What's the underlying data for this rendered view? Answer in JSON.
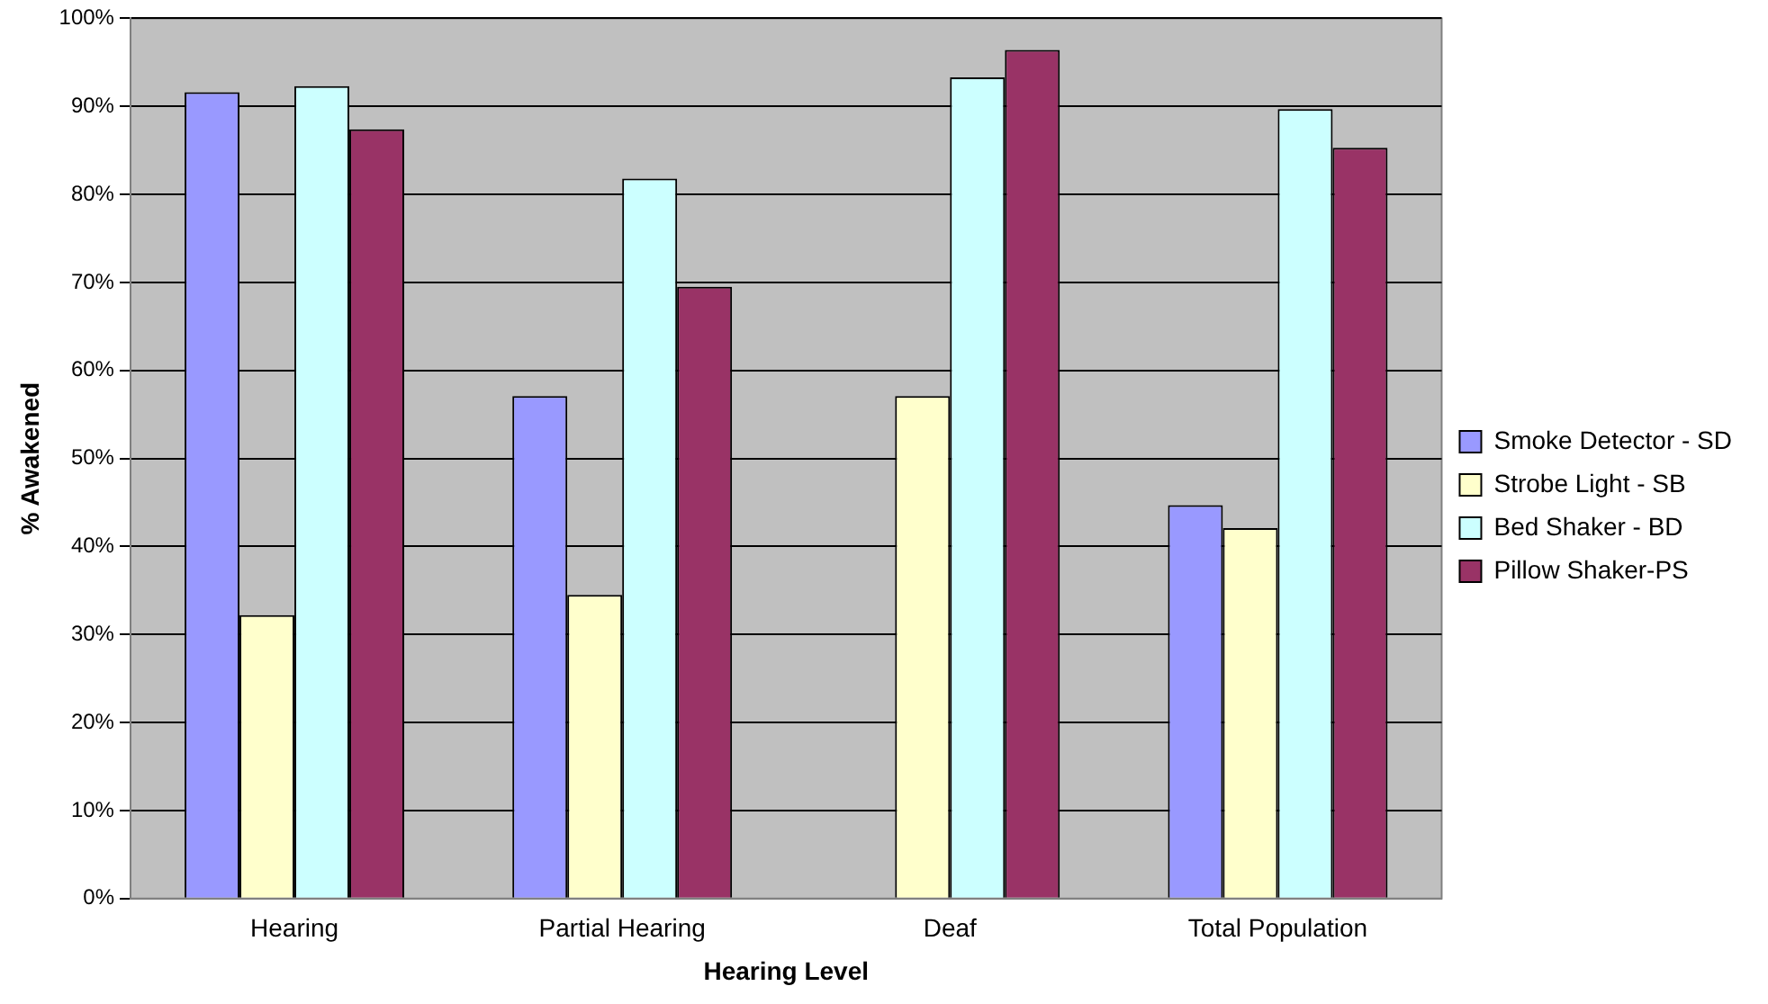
{
  "chart_data": {
    "type": "bar",
    "xlabel": "Hearing Level",
    "ylabel": "% Awakened",
    "categories": [
      "Hearing",
      "Partial Hearing",
      "Deaf",
      "Total Population"
    ],
    "series": [
      {
        "name": "Smoke Detector - SD",
        "color": "#9999ff",
        "values": [
          91.6,
          57.1,
          null,
          44.7
        ]
      },
      {
        "name": "Strobe Light - SB",
        "color": "#ffffcc",
        "values": [
          32.2,
          34.5,
          57.1,
          42.1
        ]
      },
      {
        "name": "Bed Shaker - BD",
        "color": "#ccffff",
        "values": [
          92.3,
          81.8,
          93.3,
          89.7
        ]
      },
      {
        "name": "Pillow Shaker-PS",
        "color": "#993366",
        "values": [
          87.4,
          69.5,
          96.4,
          85.3
        ]
      }
    ],
    "ylim": [
      0,
      100
    ],
    "yticks": [
      {
        "value": 0,
        "label": "0%"
      },
      {
        "value": 10,
        "label": "10%"
      },
      {
        "value": 20,
        "label": "20%"
      },
      {
        "value": 30,
        "label": "30%"
      },
      {
        "value": 40,
        "label": "40%"
      },
      {
        "value": 50,
        "label": "50%"
      },
      {
        "value": 60,
        "label": "60%"
      },
      {
        "value": 70,
        "label": "70%"
      },
      {
        "value": 80,
        "label": "80%"
      },
      {
        "value": 90,
        "label": "90%"
      },
      {
        "value": 100,
        "label": "100%"
      }
    ],
    "grid": "y",
    "legend": "right"
  }
}
